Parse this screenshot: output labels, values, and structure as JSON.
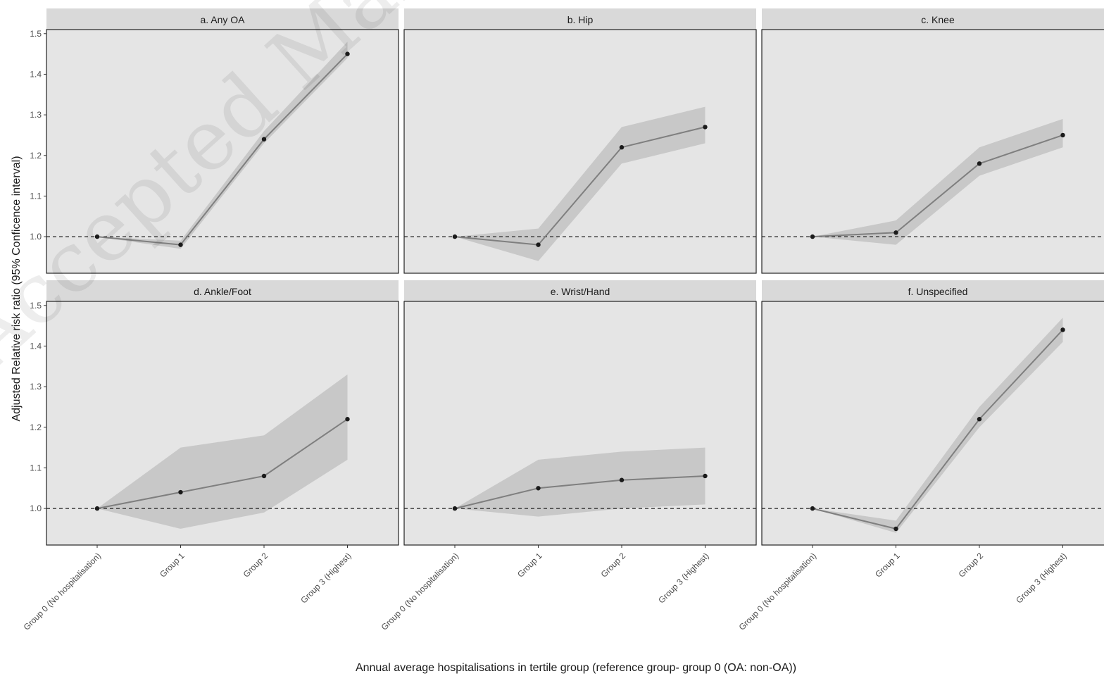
{
  "watermark": "Accepted Manuscript – BJGP – BJGP",
  "chart_data": {
    "type": "line",
    "ylabel": "Adjusted Relative risk ratio (95% Conficence interval)",
    "xlabel": "Annual average hospitalisations in tertile group (reference group- group 0 (OA: non-OA))",
    "categories": [
      "Group 0 (No hospitalisation)",
      "Group 1",
      "Group 2",
      "Group 3 (Highest)"
    ],
    "yticks": [
      1.0,
      1.1,
      1.2,
      1.3,
      1.4,
      1.5
    ],
    "ylim": [
      0.91,
      1.51
    ],
    "reference_line": 1.0,
    "grid": false,
    "colors": {
      "line": "#7f7f7f",
      "ribbon": "#c8c8c8",
      "point": "#1a1a1a",
      "panel_bg": "#e5e5e5",
      "strip_bg": "#d9d9d9"
    },
    "panels": [
      {
        "title": "a. Any OA",
        "values": [
          1.0,
          0.98,
          1.24,
          1.45
        ],
        "lower": [
          1.0,
          0.97,
          1.23,
          1.44
        ],
        "upper": [
          1.0,
          0.99,
          1.26,
          1.48
        ]
      },
      {
        "title": "b. Hip",
        "values": [
          1.0,
          0.98,
          1.22,
          1.27
        ],
        "lower": [
          1.0,
          0.94,
          1.18,
          1.23
        ],
        "upper": [
          1.0,
          1.02,
          1.27,
          1.32
        ]
      },
      {
        "title": "c. Knee",
        "values": [
          1.0,
          1.01,
          1.18,
          1.25
        ],
        "lower": [
          1.0,
          0.98,
          1.15,
          1.22
        ],
        "upper": [
          1.0,
          1.04,
          1.22,
          1.29
        ]
      },
      {
        "title": "d. Ankle/Foot",
        "values": [
          1.0,
          1.04,
          1.08,
          1.22
        ],
        "lower": [
          1.0,
          0.95,
          0.99,
          1.12
        ],
        "upper": [
          1.0,
          1.15,
          1.18,
          1.33
        ]
      },
      {
        "title": "e. Wrist/Hand",
        "values": [
          1.0,
          1.05,
          1.07,
          1.08
        ],
        "lower": [
          1.0,
          0.98,
          1.0,
          1.01
        ],
        "upper": [
          1.0,
          1.12,
          1.14,
          1.15
        ]
      },
      {
        "title": "f. Unspecified",
        "values": [
          1.0,
          0.95,
          1.22,
          1.44
        ],
        "lower": [
          1.0,
          0.94,
          1.2,
          1.41
        ],
        "upper": [
          1.0,
          0.97,
          1.25,
          1.47
        ]
      }
    ]
  }
}
